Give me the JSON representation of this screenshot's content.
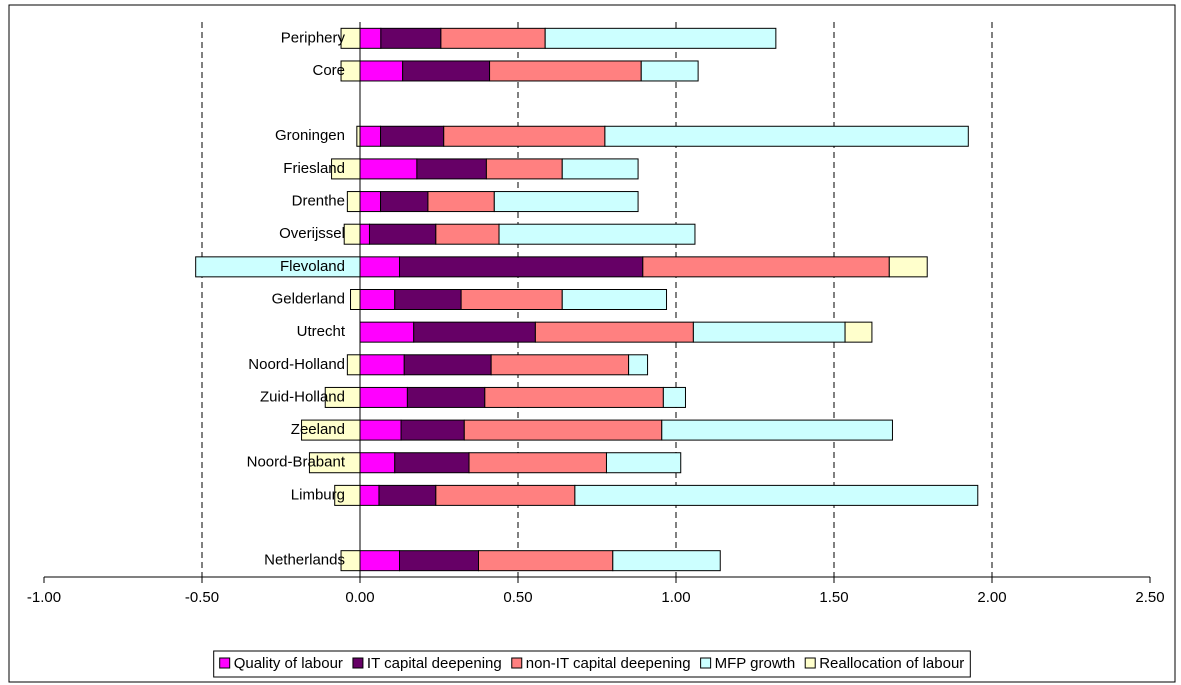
{
  "chart_data": {
    "type": "bar",
    "orientation": "horizontal",
    "stacked": true,
    "categories": [
      "Periphery",
      "Core",
      null,
      "Groningen",
      "Friesland",
      "Drenthe",
      "Overijssel",
      "Flevoland",
      "Gelderland",
      "Utrecht",
      "Noord-Holland",
      "Zuid-Holland",
      "Zeeland",
      "Noord-Brabant",
      "Limburg",
      null,
      "Netherlands"
    ],
    "series": [
      {
        "name": "Quality of labour",
        "color": "#ff00ff",
        "values": [
          0.066,
          0.135,
          null,
          0.065,
          0.18,
          0.065,
          0.03,
          0.125,
          0.11,
          0.17,
          0.14,
          0.15,
          0.13,
          0.11,
          0.06,
          null,
          0.125
        ]
      },
      {
        "name": "IT capital deepening",
        "color": "#660066",
        "values": [
          0.19,
          0.275,
          null,
          0.2,
          0.22,
          0.15,
          0.21,
          0.77,
          0.21,
          0.385,
          0.275,
          0.245,
          0.2,
          0.235,
          0.18,
          null,
          0.25
        ]
      },
      {
        "name": "non-IT capital deepening",
        "color": "#ff8080",
        "values": [
          0.33,
          0.48,
          null,
          0.51,
          0.24,
          0.21,
          0.2,
          0.78,
          0.32,
          0.5,
          0.435,
          0.565,
          0.625,
          0.435,
          0.44,
          null,
          0.425
        ]
      },
      {
        "name": "MFP growth",
        "color": "#ccffff",
        "values": [
          0.73,
          0.18,
          null,
          1.15,
          0.24,
          0.455,
          0.62,
          -0.52,
          0.33,
          0.48,
          0.06,
          0.07,
          0.73,
          0.235,
          1.275,
          null,
          0.34
        ]
      },
      {
        "name": "Reallocation of labour",
        "color": "#ffffcc",
        "values": [
          -0.06,
          -0.06,
          null,
          -0.01,
          -0.09,
          -0.04,
          -0.05,
          0.12,
          -0.03,
          0.085,
          -0.04,
          -0.11,
          -0.185,
          -0.16,
          -0.08,
          null,
          -0.06
        ]
      }
    ],
    "xlim": [
      -1,
      2.5
    ],
    "xticks": [
      {
        "value": -1,
        "label": "-1.00"
      },
      {
        "value": -0.5,
        "label": "-0.50"
      },
      {
        "value": 0,
        "label": "0.00"
      },
      {
        "value": 0.5,
        "label": "0.50"
      },
      {
        "value": 1,
        "label": "1.00"
      },
      {
        "value": 1.5,
        "label": "1.50"
      },
      {
        "value": 2,
        "label": "2.00"
      },
      {
        "value": 2.5,
        "label": "2.50"
      }
    ],
    "grid": true,
    "legend": "bottom"
  }
}
